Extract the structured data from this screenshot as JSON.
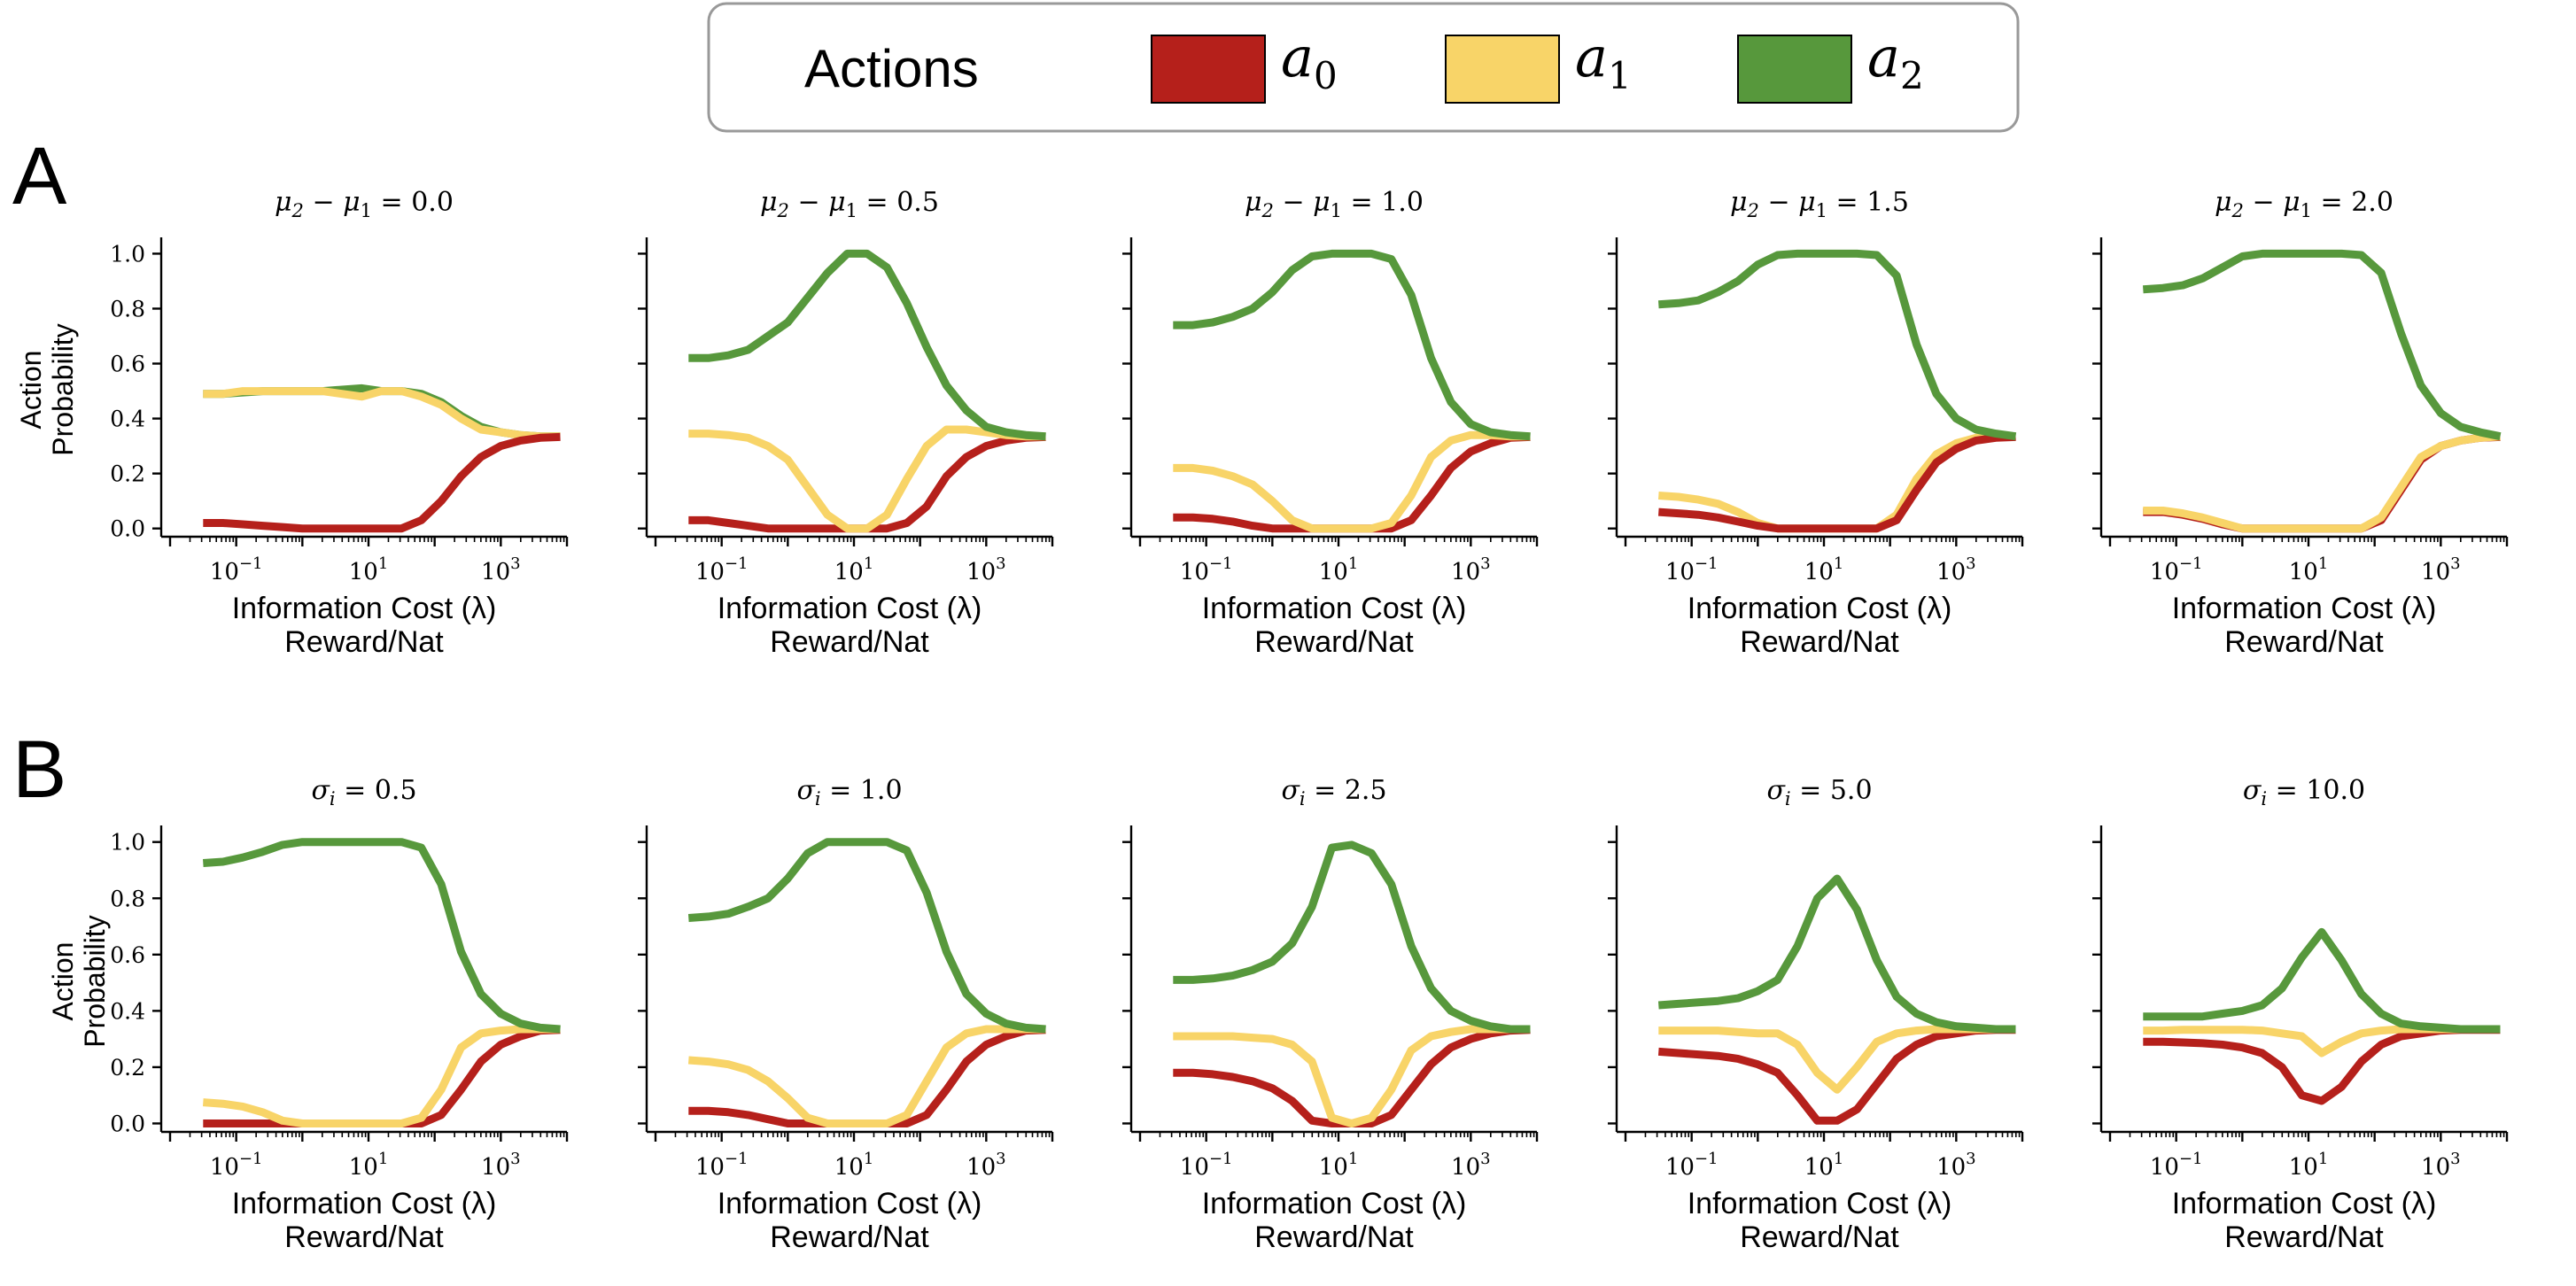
{
  "legend": {
    "title": "Actions",
    "entries": [
      {
        "name": "a0",
        "base": "a",
        "sub": "0",
        "color": "#b5201b"
      },
      {
        "name": "a1",
        "base": "a",
        "sub": "1",
        "color": "#f8d468"
      },
      {
        "name": "a2",
        "base": "a",
        "sub": "2",
        "color": "#57983c"
      }
    ]
  },
  "rows": [
    {
      "label": "A"
    },
    {
      "label": "B"
    }
  ],
  "axis_text": {
    "xlabel_line1": "Information Cost (λ)",
    "xlabel_line2": "Reward/Nat",
    "ylabel_line1": "Action",
    "ylabel_line2": "Probability",
    "yticks": [
      "0.0",
      "0.2",
      "0.4",
      "0.6",
      "0.8",
      "1.0"
    ],
    "xticks": [
      {
        "base": "10",
        "exp": "−1"
      },
      {
        "base": "10",
        "exp": "1"
      },
      {
        "base": "10",
        "exp": "3"
      }
    ]
  },
  "chart_data": [
    {
      "type": "line",
      "row": "A",
      "title_base": "μ",
      "title_s1": "2",
      "title_mid": " − μ",
      "title_s2": "1",
      "title_rhs": " = 0.0",
      "xscale": "log",
      "xlim": [
        -2,
        4
      ],
      "ylim": [
        -0.03,
        1.04
      ],
      "x": [
        -1.5,
        -1.2,
        -0.9,
        -0.6,
        -0.3,
        0.0,
        0.3,
        0.6,
        0.9,
        1.2,
        1.5,
        1.8,
        2.1,
        2.4,
        2.7,
        3.0,
        3.3,
        3.6,
        3.9
      ],
      "series": [
        {
          "name": "a2",
          "values": [
            0.49,
            0.49,
            0.495,
            0.5,
            0.5,
            0.5,
            0.5,
            0.505,
            0.51,
            0.5,
            0.5,
            0.49,
            0.46,
            0.41,
            0.37,
            0.35,
            0.34,
            0.335,
            0.335
          ]
        },
        {
          "name": "a1",
          "values": [
            0.49,
            0.49,
            0.5,
            0.5,
            0.5,
            0.5,
            0.5,
            0.49,
            0.48,
            0.5,
            0.5,
            0.48,
            0.45,
            0.4,
            0.36,
            0.35,
            0.34,
            0.335,
            0.335
          ]
        },
        {
          "name": "a0",
          "values": [
            0.02,
            0.02,
            0.015,
            0.01,
            0.005,
            0.0,
            0.0,
            0.0,
            0.0,
            0.0,
            0.0,
            0.03,
            0.1,
            0.19,
            0.26,
            0.3,
            0.32,
            0.33,
            0.333
          ]
        }
      ]
    },
    {
      "type": "line",
      "row": "A",
      "title_base": "μ",
      "title_s1": "2",
      "title_mid": " − μ",
      "title_s2": "1",
      "title_rhs": " = 0.5",
      "xscale": "log",
      "xlim": [
        -2,
        4
      ],
      "ylim": [
        -0.03,
        1.04
      ],
      "x": [
        -1.5,
        -1.2,
        -0.9,
        -0.6,
        -0.3,
        0.0,
        0.3,
        0.6,
        0.9,
        1.2,
        1.5,
        1.8,
        2.1,
        2.4,
        2.7,
        3.0,
        3.3,
        3.6,
        3.9
      ],
      "series": [
        {
          "name": "a0",
          "values": [
            0.03,
            0.03,
            0.02,
            0.01,
            0.0,
            0.0,
            0.0,
            0.0,
            0.0,
            0.0,
            0.0,
            0.02,
            0.08,
            0.19,
            0.26,
            0.3,
            0.32,
            0.33,
            0.333
          ]
        },
        {
          "name": "a1",
          "values": [
            0.345,
            0.345,
            0.34,
            0.33,
            0.3,
            0.25,
            0.15,
            0.05,
            0.0,
            0.0,
            0.05,
            0.18,
            0.3,
            0.36,
            0.36,
            0.35,
            0.34,
            0.335,
            0.335
          ]
        },
        {
          "name": "a2",
          "values": [
            0.62,
            0.62,
            0.63,
            0.65,
            0.7,
            0.75,
            0.84,
            0.93,
            1.0,
            1.0,
            0.95,
            0.82,
            0.66,
            0.52,
            0.43,
            0.37,
            0.35,
            0.34,
            0.335
          ]
        }
      ]
    },
    {
      "type": "line",
      "row": "A",
      "title_base": "μ",
      "title_s1": "2",
      "title_mid": " − μ",
      "title_s2": "1",
      "title_rhs": " = 1.0",
      "xscale": "log",
      "xlim": [
        -2,
        4
      ],
      "ylim": [
        -0.03,
        1.04
      ],
      "x": [
        -1.5,
        -1.2,
        -0.9,
        -0.6,
        -0.3,
        0.0,
        0.3,
        0.6,
        0.9,
        1.2,
        1.5,
        1.8,
        2.1,
        2.4,
        2.7,
        3.0,
        3.3,
        3.6,
        3.9
      ],
      "series": [
        {
          "name": "a0",
          "values": [
            0.04,
            0.04,
            0.035,
            0.025,
            0.01,
            0.0,
            0.0,
            0.0,
            0.0,
            0.0,
            0.0,
            0.0,
            0.03,
            0.12,
            0.22,
            0.28,
            0.31,
            0.33,
            0.333
          ]
        },
        {
          "name": "a1",
          "values": [
            0.22,
            0.22,
            0.21,
            0.19,
            0.16,
            0.1,
            0.03,
            0.0,
            0.0,
            0.0,
            0.0,
            0.02,
            0.12,
            0.26,
            0.32,
            0.34,
            0.34,
            0.335,
            0.335
          ]
        },
        {
          "name": "a2",
          "values": [
            0.74,
            0.74,
            0.75,
            0.77,
            0.8,
            0.86,
            0.94,
            0.99,
            1.0,
            1.0,
            1.0,
            0.98,
            0.85,
            0.62,
            0.46,
            0.38,
            0.35,
            0.34,
            0.335
          ]
        }
      ]
    },
    {
      "type": "line",
      "row": "A",
      "title_base": "μ",
      "title_s1": "2",
      "title_mid": " − μ",
      "title_s2": "1",
      "title_rhs": " = 1.5",
      "xscale": "log",
      "xlim": [
        -2,
        4
      ],
      "ylim": [
        -0.03,
        1.04
      ],
      "x": [
        -1.5,
        -1.2,
        -0.9,
        -0.6,
        -0.3,
        0.0,
        0.3,
        0.6,
        0.9,
        1.2,
        1.5,
        1.8,
        2.1,
        2.4,
        2.7,
        3.0,
        3.3,
        3.6,
        3.9
      ],
      "series": [
        {
          "name": "a1",
          "values": [
            0.12,
            0.115,
            0.105,
            0.09,
            0.06,
            0.02,
            0.0,
            0.0,
            0.0,
            0.0,
            0.0,
            0.0,
            0.05,
            0.18,
            0.27,
            0.31,
            0.33,
            0.333,
            0.335
          ]
        },
        {
          "name": "a0",
          "values": [
            0.06,
            0.055,
            0.05,
            0.04,
            0.025,
            0.01,
            0.0,
            0.0,
            0.0,
            0.0,
            0.0,
            0.0,
            0.03,
            0.14,
            0.24,
            0.29,
            0.32,
            0.33,
            0.333
          ]
        },
        {
          "name": "a2",
          "values": [
            0.815,
            0.82,
            0.83,
            0.86,
            0.9,
            0.96,
            0.995,
            1.0,
            1.0,
            1.0,
            1.0,
            0.995,
            0.92,
            0.67,
            0.49,
            0.4,
            0.36,
            0.345,
            0.335
          ]
        }
      ]
    },
    {
      "type": "line",
      "row": "A",
      "title_base": "μ",
      "title_s1": "2",
      "title_mid": " − μ",
      "title_s2": "1",
      "title_rhs": " = 2.0",
      "xscale": "log",
      "xlim": [
        -2,
        4
      ],
      "ylim": [
        -0.03,
        1.04
      ],
      "x": [
        -1.5,
        -1.2,
        -0.9,
        -0.6,
        -0.3,
        0.0,
        0.3,
        0.6,
        0.9,
        1.2,
        1.5,
        1.8,
        2.1,
        2.4,
        2.7,
        3.0,
        3.3,
        3.6,
        3.9
      ],
      "series": [
        {
          "name": "a0",
          "values": [
            0.06,
            0.06,
            0.05,
            0.035,
            0.015,
            0.0,
            0.0,
            0.0,
            0.0,
            0.0,
            0.0,
            0.0,
            0.03,
            0.14,
            0.25,
            0.3,
            0.32,
            0.33,
            0.333
          ]
        },
        {
          "name": "a1",
          "values": [
            0.065,
            0.065,
            0.055,
            0.04,
            0.02,
            0.0,
            0.0,
            0.0,
            0.0,
            0.0,
            0.0,
            0.0,
            0.04,
            0.15,
            0.26,
            0.3,
            0.32,
            0.33,
            0.335
          ]
        },
        {
          "name": "a2",
          "values": [
            0.87,
            0.875,
            0.885,
            0.91,
            0.95,
            0.99,
            1.0,
            1.0,
            1.0,
            1.0,
            1.0,
            0.995,
            0.93,
            0.71,
            0.52,
            0.42,
            0.37,
            0.35,
            0.335
          ]
        }
      ]
    },
    {
      "type": "line",
      "row": "B",
      "title_base": "σ",
      "title_s1": "i",
      "title_mid": "",
      "title_s2": "",
      "title_rhs": " = 0.5",
      "xscale": "log",
      "xlim": [
        -2,
        4
      ],
      "ylim": [
        -0.03,
        1.04
      ],
      "x": [
        -1.5,
        -1.2,
        -0.9,
        -0.6,
        -0.3,
        0.0,
        0.3,
        0.6,
        0.9,
        1.2,
        1.5,
        1.8,
        2.1,
        2.4,
        2.7,
        3.0,
        3.3,
        3.6,
        3.9
      ],
      "series": [
        {
          "name": "a0",
          "values": [
            0.0,
            0.0,
            0.0,
            0.0,
            0.0,
            0.0,
            0.0,
            0.0,
            0.0,
            0.0,
            0.0,
            0.0,
            0.03,
            0.12,
            0.22,
            0.28,
            0.31,
            0.33,
            0.333
          ]
        },
        {
          "name": "a1",
          "values": [
            0.075,
            0.07,
            0.06,
            0.04,
            0.01,
            0.0,
            0.0,
            0.0,
            0.0,
            0.0,
            0.0,
            0.02,
            0.12,
            0.27,
            0.32,
            0.33,
            0.335,
            0.335,
            0.335
          ]
        },
        {
          "name": "a2",
          "values": [
            0.925,
            0.93,
            0.945,
            0.965,
            0.99,
            1.0,
            1.0,
            1.0,
            1.0,
            1.0,
            1.0,
            0.98,
            0.85,
            0.61,
            0.46,
            0.39,
            0.355,
            0.34,
            0.335
          ]
        }
      ]
    },
    {
      "type": "line",
      "row": "B",
      "title_base": "σ",
      "title_s1": "i",
      "title_mid": "",
      "title_s2": "",
      "title_rhs": " = 1.0",
      "xscale": "log",
      "xlim": [
        -2,
        4
      ],
      "ylim": [
        -0.03,
        1.04
      ],
      "x": [
        -1.5,
        -1.2,
        -0.9,
        -0.6,
        -0.3,
        0.0,
        0.3,
        0.6,
        0.9,
        1.2,
        1.5,
        1.8,
        2.1,
        2.4,
        2.7,
        3.0,
        3.3,
        3.6,
        3.9
      ],
      "series": [
        {
          "name": "a0",
          "values": [
            0.045,
            0.045,
            0.04,
            0.03,
            0.015,
            0.0,
            0.0,
            0.0,
            0.0,
            0.0,
            0.0,
            0.0,
            0.03,
            0.12,
            0.22,
            0.28,
            0.31,
            0.33,
            0.333
          ]
        },
        {
          "name": "a1",
          "values": [
            0.225,
            0.22,
            0.21,
            0.19,
            0.15,
            0.09,
            0.02,
            0.0,
            0.0,
            0.0,
            0.0,
            0.03,
            0.15,
            0.27,
            0.32,
            0.335,
            0.335,
            0.335,
            0.335
          ]
        },
        {
          "name": "a2",
          "values": [
            0.73,
            0.735,
            0.745,
            0.77,
            0.8,
            0.87,
            0.96,
            1.0,
            1.0,
            1.0,
            1.0,
            0.97,
            0.82,
            0.61,
            0.46,
            0.39,
            0.355,
            0.34,
            0.335
          ]
        }
      ]
    },
    {
      "type": "line",
      "row": "B",
      "title_base": "σ",
      "title_s1": "i",
      "title_mid": "",
      "title_s2": "",
      "title_rhs": " = 2.5",
      "xscale": "log",
      "xlim": [
        -2,
        4
      ],
      "ylim": [
        -0.03,
        1.04
      ],
      "x": [
        -1.5,
        -1.2,
        -0.9,
        -0.6,
        -0.3,
        0.0,
        0.3,
        0.6,
        0.9,
        1.2,
        1.5,
        1.8,
        2.1,
        2.4,
        2.7,
        3.0,
        3.3,
        3.6,
        3.9
      ],
      "series": [
        {
          "name": "a0",
          "values": [
            0.18,
            0.18,
            0.175,
            0.165,
            0.15,
            0.125,
            0.08,
            0.01,
            0.0,
            0.0,
            0.0,
            0.03,
            0.12,
            0.21,
            0.27,
            0.3,
            0.32,
            0.33,
            0.333
          ]
        },
        {
          "name": "a1",
          "values": [
            0.31,
            0.31,
            0.31,
            0.31,
            0.305,
            0.3,
            0.28,
            0.22,
            0.02,
            0.0,
            0.02,
            0.12,
            0.26,
            0.31,
            0.325,
            0.335,
            0.335,
            0.335,
            0.335
          ]
        },
        {
          "name": "a2",
          "values": [
            0.51,
            0.51,
            0.515,
            0.525,
            0.545,
            0.575,
            0.64,
            0.77,
            0.98,
            0.99,
            0.96,
            0.85,
            0.63,
            0.48,
            0.4,
            0.365,
            0.345,
            0.335,
            0.335
          ]
        }
      ]
    },
    {
      "type": "line",
      "row": "B",
      "title_base": "σ",
      "title_s1": "i",
      "title_mid": "",
      "title_s2": "",
      "title_rhs": " = 5.0",
      "xscale": "log",
      "xlim": [
        -2,
        4
      ],
      "ylim": [
        -0.03,
        1.04
      ],
      "x": [
        -1.5,
        -1.2,
        -0.9,
        -0.6,
        -0.3,
        0.0,
        0.3,
        0.6,
        0.9,
        1.2,
        1.5,
        1.8,
        2.1,
        2.4,
        2.7,
        3.0,
        3.3,
        3.6,
        3.9
      ],
      "series": [
        {
          "name": "a0",
          "values": [
            0.255,
            0.25,
            0.245,
            0.24,
            0.23,
            0.21,
            0.18,
            0.1,
            0.01,
            0.01,
            0.05,
            0.14,
            0.23,
            0.28,
            0.31,
            0.32,
            0.33,
            0.333,
            0.333
          ]
        },
        {
          "name": "a1",
          "values": [
            0.33,
            0.33,
            0.33,
            0.33,
            0.325,
            0.32,
            0.32,
            0.28,
            0.18,
            0.12,
            0.2,
            0.29,
            0.32,
            0.33,
            0.335,
            0.335,
            0.335,
            0.335,
            0.335
          ]
        },
        {
          "name": "a2",
          "values": [
            0.42,
            0.425,
            0.43,
            0.435,
            0.445,
            0.47,
            0.51,
            0.63,
            0.8,
            0.87,
            0.76,
            0.58,
            0.45,
            0.39,
            0.36,
            0.345,
            0.34,
            0.335,
            0.335
          ]
        }
      ]
    },
    {
      "type": "line",
      "row": "B",
      "title_base": "σ",
      "title_s1": "i",
      "title_mid": "",
      "title_s2": "",
      "title_rhs": " = 10.0",
      "xscale": "log",
      "xlim": [
        -2,
        4
      ],
      "ylim": [
        -0.03,
        1.04
      ],
      "x": [
        -1.5,
        -1.2,
        -0.9,
        -0.6,
        -0.3,
        0.0,
        0.3,
        0.6,
        0.9,
        1.2,
        1.5,
        1.8,
        2.1,
        2.4,
        2.7,
        3.0,
        3.3,
        3.6,
        3.9
      ],
      "series": [
        {
          "name": "a0",
          "values": [
            0.29,
            0.29,
            0.288,
            0.285,
            0.28,
            0.27,
            0.25,
            0.2,
            0.1,
            0.08,
            0.13,
            0.22,
            0.28,
            0.31,
            0.32,
            0.33,
            0.333,
            0.333,
            0.333
          ]
        },
        {
          "name": "a1",
          "values": [
            0.33,
            0.33,
            0.333,
            0.333,
            0.333,
            0.333,
            0.33,
            0.32,
            0.31,
            0.25,
            0.29,
            0.32,
            0.33,
            0.335,
            0.335,
            0.335,
            0.335,
            0.335,
            0.335
          ]
        },
        {
          "name": "a2",
          "values": [
            0.38,
            0.38,
            0.38,
            0.38,
            0.39,
            0.4,
            0.42,
            0.48,
            0.59,
            0.68,
            0.58,
            0.46,
            0.39,
            0.355,
            0.345,
            0.34,
            0.335,
            0.335,
            0.335
          ]
        }
      ]
    }
  ]
}
